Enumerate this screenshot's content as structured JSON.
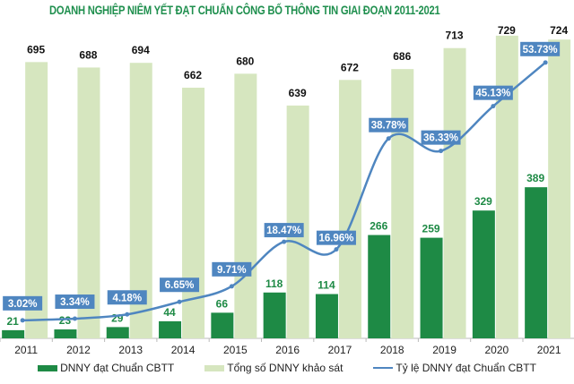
{
  "chart_data": {
    "type": "bar",
    "title": "DOANH NGHIỆP NIÊM YẾT ĐẠT CHUẨN CÔNG BỐ THÔNG TIN GIAI ĐOẠN 2011-2021",
    "categories": [
      "2011",
      "2012",
      "2013",
      "2014",
      "2015",
      "2016",
      "2017",
      "2018",
      "2019",
      "2020",
      "2021"
    ],
    "series": [
      {
        "name": "DNNY đạt Chuẩn CBTT",
        "type": "bar",
        "color": "#1e8a45",
        "values": [
          21,
          23,
          29,
          44,
          66,
          118,
          114,
          266,
          259,
          329,
          389
        ]
      },
      {
        "name": "Tổng số DNNY khảo sát",
        "type": "bar",
        "color": "#d6e6bf",
        "values": [
          695,
          688,
          694,
          662,
          680,
          639,
          672,
          686,
          713,
          729,
          724
        ]
      },
      {
        "name": "Tỷ lệ DNNY đạt Chuẩn CBTT",
        "type": "line",
        "color": "#4f86c0",
        "unit": "%",
        "values": [
          3.02,
          3.34,
          4.18,
          6.65,
          9.71,
          18.47,
          16.96,
          38.78,
          36.33,
          45.13,
          53.73
        ]
      }
    ],
    "grid": false,
    "legend_position": "bottom"
  }
}
